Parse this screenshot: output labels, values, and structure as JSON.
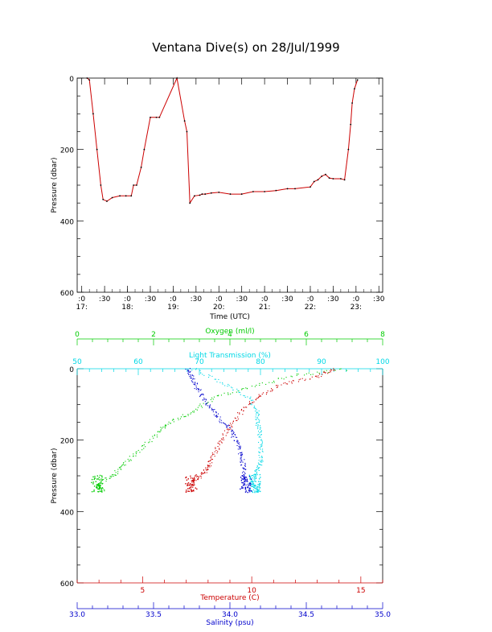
{
  "title": "Ventana Dive(s) on 28/Jul/1999",
  "chart_data": [
    {
      "type": "line",
      "xlabel": "Time (UTC)",
      "ylabel": "Pressure (dbar)",
      "ylim": [
        0,
        600
      ],
      "y_ticks": [
        "0",
        "200",
        "400",
        "600"
      ],
      "x_tick_labels": [
        ":0",
        ":30",
        ":0",
        ":30",
        ":0",
        ":30",
        ":0",
        ":30",
        ":0",
        ":30",
        ":0",
        ":30",
        ":0",
        ":30"
      ],
      "x_hour_labels": [
        "17:",
        "18:",
        "19:",
        "20:",
        "21:",
        "22:",
        "23:"
      ],
      "color": "#cc0000",
      "series": [
        {
          "x": [
            "17:07",
            "17:10",
            "17:15",
            "17:20",
            "17:25",
            "17:28",
            "17:33",
            "17:40",
            "17:50",
            "17:58",
            "18:05",
            "18:08",
            "18:12",
            "18:18",
            "18:22",
            "18:30",
            "18:38",
            "18:42",
            "19:05",
            "19:15",
            "19:18",
            "19:22",
            "19:28",
            "19:35",
            "19:38",
            "19:42",
            "19:50",
            "20:00",
            "20:15",
            "20:30",
            "20:45",
            "21:00",
            "21:15",
            "21:30",
            "21:40",
            "22:00",
            "22:05",
            "22:10",
            "22:15",
            "22:20",
            "22:25",
            "22:30",
            "22:40",
            "22:45",
            "22:50",
            "22:53",
            "22:55",
            "22:58",
            "23:02"
          ],
          "y": [
            0,
            5,
            100,
            200,
            300,
            340,
            345,
            335,
            330,
            330,
            330,
            300,
            300,
            250,
            200,
            110,
            110,
            110,
            0,
            120,
            150,
            350,
            330,
            328,
            325,
            325,
            322,
            320,
            325,
            325,
            318,
            318,
            315,
            310,
            310,
            305,
            290,
            285,
            275,
            270,
            280,
            282,
            282,
            285,
            200,
            130,
            70,
            30,
            5
          ]
        }
      ]
    },
    {
      "type": "scatter",
      "ylabel": "Pressure (dbar)",
      "ylim": [
        0,
        600
      ],
      "y_ticks": [
        "0",
        "200",
        "400",
        "600"
      ],
      "axes": {
        "oxygen": {
          "label": "Oxygen (ml/l)",
          "range": [
            0,
            8
          ],
          "ticks": [
            "0",
            "2",
            "4",
            "6",
            "8"
          ],
          "color": "#00cc00"
        },
        "light": {
          "label": "Light Transmission (%)",
          "range": [
            50,
            100
          ],
          "ticks": [
            "50",
            "60",
            "70",
            "80",
            "90",
            "100"
          ],
          "color": "#00d8e6"
        },
        "temperature": {
          "label": "Temperature (C)",
          "range": [
            2,
            16
          ],
          "ticks": [
            "5",
            "10",
            "15"
          ],
          "color": "#cc0000"
        },
        "salinity": {
          "label": "Salinity (psu)",
          "range": [
            33.0,
            35.0
          ],
          "ticks": [
            "33.0",
            "33.5",
            "34.0",
            "34.5",
            "35.0"
          ],
          "color": "#0000cc"
        }
      },
      "series": [
        {
          "name": "Oxygen",
          "axis": "oxygen",
          "color": "#00cc00",
          "x": [
            7.0,
            5.6,
            4.5,
            3.6,
            3.0,
            2.4,
            2.1,
            1.6,
            1.2,
            0.9,
            0.6,
            0.5,
            0.7
          ],
          "y": [
            0,
            20,
            50,
            80,
            120,
            150,
            180,
            230,
            270,
            300,
            320,
            330,
            340
          ]
        },
        {
          "name": "Light Transmission",
          "axis": "light",
          "color": "#00d8e6",
          "x": [
            69,
            74,
            78,
            79.5,
            79.5,
            79.8,
            80,
            80,
            79.5,
            79,
            78.5,
            79,
            79.5
          ],
          "y": [
            0,
            40,
            80,
            120,
            150,
            180,
            220,
            260,
            280,
            300,
            320,
            330,
            345
          ]
        },
        {
          "name": "Temperature",
          "axis": "temperature",
          "color": "#cc0000",
          "x": [
            13.8,
            13.0,
            11.5,
            10.5,
            9.8,
            9.2,
            8.8,
            8.4,
            8.1,
            7.9,
            7.6,
            7.2,
            7.3
          ],
          "y": [
            0,
            20,
            40,
            70,
            100,
            140,
            180,
            220,
            260,
            280,
            300,
            320,
            340
          ]
        },
        {
          "name": "Salinity",
          "axis": "salinity",
          "color": "#0000cc",
          "x": [
            33.72,
            33.75,
            33.78,
            33.82,
            33.88,
            33.93,
            34.0,
            34.04,
            34.06,
            34.08,
            34.09,
            34.1,
            34.12
          ],
          "y": [
            0,
            20,
            50,
            80,
            110,
            140,
            170,
            200,
            230,
            260,
            290,
            320,
            345
          ]
        }
      ]
    }
  ]
}
